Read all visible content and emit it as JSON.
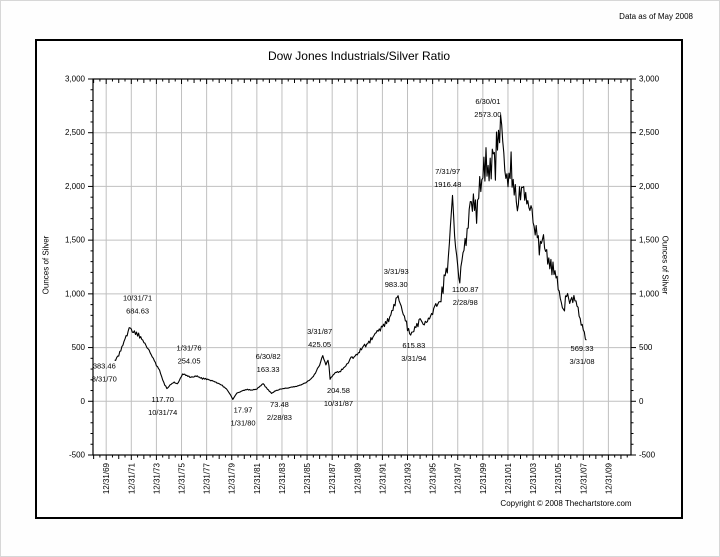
{
  "page": {
    "data_as_of": "Data as of May 2008",
    "copyright": "Copyright © 2008 Thechartstore.com"
  },
  "chart_data": {
    "type": "line",
    "title": "Dow Jones Industrials/Silver Ratio",
    "ylabel_left": "Ounces of Silver",
    "ylabel_right": "Ounces of Silver",
    "ylim": [
      -500,
      3000
    ],
    "y_tick_step": 500,
    "y_minor_step": 100,
    "x_range_years": [
      1968.95,
      2011.8
    ],
    "grid": true,
    "legend_position": "none",
    "colors": {
      "line": "#000000",
      "grid": "#c0c0c0",
      "axis": "#000000",
      "background": "#ffffff",
      "text": "#000000"
    },
    "y_ticks": [
      {
        "v": 3000,
        "label": "3,000"
      },
      {
        "v": 2500,
        "label": "2,500"
      },
      {
        "v": 2000,
        "label": "2,000"
      },
      {
        "v": 1500,
        "label": "1,500"
      },
      {
        "v": 1000,
        "label": "1,000"
      },
      {
        "v": 500,
        "label": "500"
      },
      {
        "v": 0,
        "label": "0"
      },
      {
        "v": -500,
        "label": "-500"
      }
    ],
    "x_ticks": [
      {
        "year": 1970,
        "label": "12/31/69"
      },
      {
        "year": 1972,
        "label": "12/31/71"
      },
      {
        "year": 1974,
        "label": "12/31/73"
      },
      {
        "year": 1976,
        "label": "12/31/75"
      },
      {
        "year": 1978,
        "label": "12/31/77"
      },
      {
        "year": 1980,
        "label": "12/31/79"
      },
      {
        "year": 1982,
        "label": "12/31/81"
      },
      {
        "year": 1984,
        "label": "12/31/83"
      },
      {
        "year": 1986,
        "label": "12/31/85"
      },
      {
        "year": 1988,
        "label": "12/31/87"
      },
      {
        "year": 1990,
        "label": "12/31/89"
      },
      {
        "year": 1992,
        "label": "12/31/91"
      },
      {
        "year": 1994,
        "label": "12/31/93"
      },
      {
        "year": 1996,
        "label": "12/31/95"
      },
      {
        "year": 1998,
        "label": "12/31/97"
      },
      {
        "year": 2000,
        "label": "12/31/99"
      },
      {
        "year": 2002,
        "label": "12/31/01"
      },
      {
        "year": 2004,
        "label": "12/31/03"
      },
      {
        "year": 2006,
        "label": "12/31/05"
      },
      {
        "year": 2008,
        "label": "12/31/07"
      },
      {
        "year": 2010,
        "label": "12/31/09"
      }
    ],
    "key_points": [
      {
        "date": "8/31/70",
        "year": 1970.667,
        "value": 383.46
      },
      {
        "date": "10/31/71",
        "year": 1971.833,
        "value": 684.63
      },
      {
        "date": "10/31/74",
        "year": 1974.833,
        "value": 117.7
      },
      {
        "date": "1/31/76",
        "year": 1976.083,
        "value": 254.05
      },
      {
        "date": "1/31/80",
        "year": 1980.083,
        "value": 17.97
      },
      {
        "date": "6/30/82",
        "year": 1982.5,
        "value": 163.33
      },
      {
        "date": "2/28/83",
        "year": 1983.167,
        "value": 73.48
      },
      {
        "date": "3/31/87",
        "year": 1987.25,
        "value": 425.05
      },
      {
        "date": "10/31/87",
        "year": 1987.833,
        "value": 204.58
      },
      {
        "date": "3/31/93",
        "year": 1993.25,
        "value": 983.3
      },
      {
        "date": "3/31/94",
        "year": 1994.25,
        "value": 615.83
      },
      {
        "date": "7/31/97",
        "year": 1997.583,
        "value": 1916.48
      },
      {
        "date": "2/28/98",
        "year": 1998.167,
        "value": 1100.87
      },
      {
        "date": "6/30/01",
        "year": 2001.5,
        "value": 2573.0
      },
      {
        "date": "3/31/08",
        "year": 2008.25,
        "value": 569.33
      }
    ],
    "anchors": [
      [
        1970.667,
        383.46
      ],
      [
        1971.0,
        430
      ],
      [
        1971.3,
        520
      ],
      [
        1971.6,
        600
      ],
      [
        1971.833,
        684.63
      ],
      [
        1972.1,
        630
      ],
      [
        1972.4,
        645
      ],
      [
        1972.7,
        590
      ],
      [
        1973.0,
        560
      ],
      [
        1973.4,
        470
      ],
      [
        1973.8,
        380
      ],
      [
        1974.2,
        300
      ],
      [
        1974.5,
        200
      ],
      [
        1974.833,
        117.7
      ],
      [
        1975.1,
        150
      ],
      [
        1975.4,
        175
      ],
      [
        1975.7,
        160
      ],
      [
        1976.083,
        254.05
      ],
      [
        1976.4,
        240
      ],
      [
        1976.8,
        225
      ],
      [
        1977.2,
        235
      ],
      [
        1977.6,
        215
      ],
      [
        1978.0,
        205
      ],
      [
        1978.4,
        190
      ],
      [
        1978.8,
        175
      ],
      [
        1979.2,
        150
      ],
      [
        1979.6,
        110
      ],
      [
        1979.9,
        60
      ],
      [
        1980.083,
        17.97
      ],
      [
        1980.4,
        75
      ],
      [
        1980.8,
        95
      ],
      [
        1981.2,
        110
      ],
      [
        1981.6,
        105
      ],
      [
        1982.0,
        115
      ],
      [
        1982.5,
        163.33
      ],
      [
        1982.8,
        120
      ],
      [
        1983.167,
        73.48
      ],
      [
        1983.5,
        100
      ],
      [
        1984.0,
        115
      ],
      [
        1984.5,
        125
      ],
      [
        1985.0,
        135
      ],
      [
        1985.5,
        150
      ],
      [
        1986.0,
        180
      ],
      [
        1986.5,
        230
      ],
      [
        1987.0,
        340
      ],
      [
        1987.25,
        425.05
      ],
      [
        1987.5,
        340
      ],
      [
        1987.7,
        390
      ],
      [
        1987.833,
        204.58
      ],
      [
        1988.2,
        260
      ],
      [
        1988.6,
        280
      ],
      [
        1989.0,
        320
      ],
      [
        1989.5,
        390
      ],
      [
        1990.0,
        440
      ],
      [
        1990.4,
        500
      ],
      [
        1990.8,
        540
      ],
      [
        1991.2,
        590
      ],
      [
        1991.6,
        640
      ],
      [
        1992.0,
        690
      ],
      [
        1992.4,
        750
      ],
      [
        1992.8,
        830
      ],
      [
        1993.25,
        983.3
      ],
      [
        1993.6,
        830
      ],
      [
        1994.0,
        680
      ],
      [
        1994.25,
        615.83
      ],
      [
        1994.6,
        690
      ],
      [
        1995.0,
        745
      ],
      [
        1995.4,
        710
      ],
      [
        1995.8,
        790
      ],
      [
        1996.2,
        880
      ],
      [
        1996.6,
        950
      ],
      [
        1997.0,
        1150
      ],
      [
        1997.3,
        1400
      ],
      [
        1997.583,
        1916.48
      ],
      [
        1997.8,
        1450
      ],
      [
        1998.0,
        1250
      ],
      [
        1998.167,
        1100.87
      ],
      [
        1998.5,
        1450
      ],
      [
        1998.8,
        1600
      ],
      [
        1999.1,
        1800
      ],
      [
        1999.4,
        1850
      ],
      [
        1999.7,
        1950
      ],
      [
        2000.0,
        2100
      ],
      [
        2000.3,
        2250
      ],
      [
        2000.6,
        2150
      ],
      [
        2000.9,
        2300
      ],
      [
        2001.2,
        2400
      ],
      [
        2001.5,
        2573.0
      ],
      [
        2001.7,
        2300
      ],
      [
        2001.9,
        2000
      ],
      [
        2002.2,
        2150
      ],
      [
        2002.5,
        2050
      ],
      [
        2002.8,
        1900
      ],
      [
        2003.1,
        1980
      ],
      [
        2003.4,
        1850
      ],
      [
        2003.7,
        1780
      ],
      [
        2004.0,
        1680
      ],
      [
        2004.3,
        1520
      ],
      [
        2004.6,
        1480
      ],
      [
        2004.9,
        1420
      ],
      [
        2005.2,
        1330
      ],
      [
        2005.5,
        1250
      ],
      [
        2005.8,
        1150
      ],
      [
        2006.1,
        1000
      ],
      [
        2006.4,
        870
      ],
      [
        2006.7,
        960
      ],
      [
        2007.0,
        920
      ],
      [
        2007.3,
        960
      ],
      [
        2007.6,
        820
      ],
      [
        2007.9,
        700
      ],
      [
        2008.1,
        650
      ],
      [
        2008.25,
        569.33
      ]
    ],
    "annotations": [
      {
        "line1": "10/31/71",
        "line2": "684.63",
        "x": 1972.5,
        "y": 960
      },
      {
        "line1": "383.46",
        "line2": "8/31/70",
        "x": 1969.85,
        "y": 330
      },
      {
        "line1": "117.70",
        "line2": "10/31/74",
        "x": 1974.5,
        "y": 15
      },
      {
        "line1": "1/31/76",
        "line2": "254.05",
        "x": 1976.6,
        "y": 495
      },
      {
        "line1": "17.97",
        "line2": "1/31/80",
        "x": 1980.9,
        "y": -80
      },
      {
        "line1": "6/30/82",
        "line2": "163.33",
        "x": 1982.9,
        "y": 415
      },
      {
        "line1": "73.48",
        "line2": "2/28/83",
        "x": 1983.8,
        "y": -30
      },
      {
        "line1": "3/31/87",
        "line2": "425.05",
        "x": 1987.0,
        "y": 650
      },
      {
        "line1": "204.58",
        "line2": "10/31/87",
        "x": 1988.5,
        "y": 100
      },
      {
        "line1": "3/31/93",
        "line2": "983.30",
        "x": 1993.1,
        "y": 1210
      },
      {
        "line1": "615.83",
        "line2": "3/31/94",
        "x": 1994.5,
        "y": 520
      },
      {
        "line1": "7/31/97",
        "line2": "1916.48",
        "x": 1997.2,
        "y": 2140
      },
      {
        "line1": "1100.87",
        "line2": "2/28/98",
        "x": 1998.6,
        "y": 1040
      },
      {
        "line1": "6/30/01",
        "line2": "2573.00",
        "x": 2000.4,
        "y": 2790
      },
      {
        "line1": "569.33",
        "line2": "3/31/08",
        "x": 2007.9,
        "y": 490
      }
    ]
  }
}
